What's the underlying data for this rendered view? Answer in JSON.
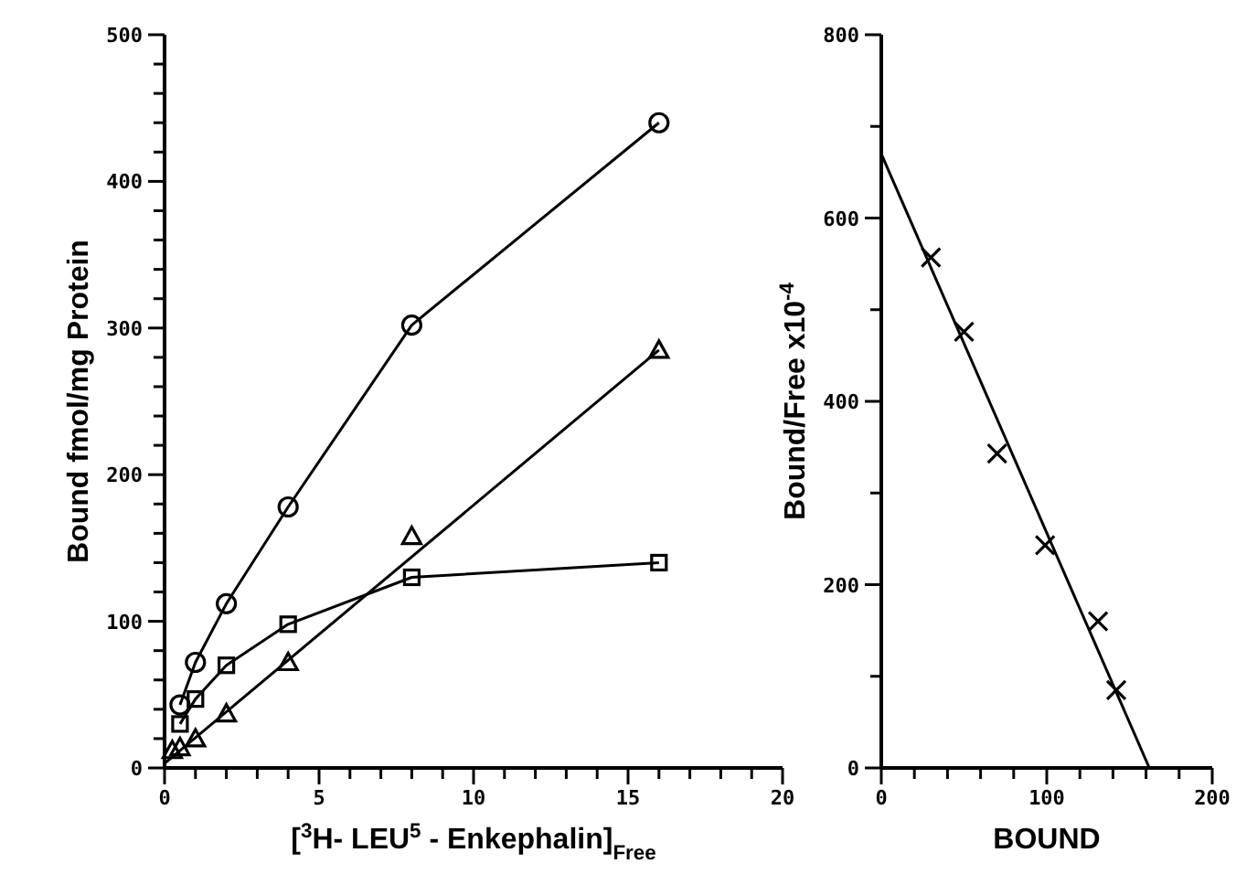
{
  "chart_data": [
    {
      "type": "line",
      "xlabel": "[$^{3}$H- LEU$^{5}$ - Enkephalin]$_{Free}$",
      "ylabel": "Bound fmol/mg Protein",
      "xlim": [
        0,
        20
      ],
      "ylim": [
        0,
        500
      ],
      "xticks": [
        0,
        {
          "value": 1,
          "label": null
        },
        {
          "value": 2,
          "label": null
        },
        {
          "value": 3,
          "label": null
        },
        {
          "value": 4,
          "label": null
        },
        5,
        {
          "value": 6,
          "label": null
        },
        {
          "value": 7,
          "label": null
        },
        {
          "value": 8,
          "label": null
        },
        {
          "value": 9,
          "label": null
        },
        10,
        {
          "value": 11,
          "label": null
        },
        {
          "value": 12,
          "label": null
        },
        {
          "value": 13,
          "label": null
        },
        {
          "value": 14,
          "label": null
        },
        15,
        {
          "value": 16,
          "label": null
        },
        {
          "value": 17,
          "label": null
        },
        {
          "value": 18,
          "label": null
        },
        {
          "value": 19,
          "label": null
        },
        20
      ],
      "yticks": [
        0,
        {
          "value": 20,
          "label": null
        },
        {
          "value": 40,
          "label": null
        },
        {
          "value": 60,
          "label": null
        },
        {
          "value": 80,
          "label": null
        },
        100,
        {
          "value": 120,
          "label": null
        },
        {
          "value": 140,
          "label": null
        },
        {
          "value": 160,
          "label": null
        },
        {
          "value": 180,
          "label": null
        },
        200,
        {
          "value": 220,
          "label": null
        },
        {
          "value": 240,
          "label": null
        },
        {
          "value": 260,
          "label": null
        },
        {
          "value": 280,
          "label": null
        },
        300,
        {
          "value": 320,
          "label": null
        },
        {
          "value": 340,
          "label": null
        },
        {
          "value": 360,
          "label": null
        },
        {
          "value": 380,
          "label": null
        },
        400,
        {
          "value": 420,
          "label": null
        },
        {
          "value": 440,
          "label": null
        },
        {
          "value": 460,
          "label": null
        },
        {
          "value": 480,
          "label": null
        },
        500
      ],
      "line_style": "solid",
      "series": [
        {
          "marker": "circle",
          "color": "#000000",
          "x": [
            0.5,
            1,
            2,
            4,
            8,
            16
          ],
          "values": [
            43,
            72,
            112,
            178,
            302,
            440
          ]
        },
        {
          "marker": "square",
          "color": "#000000",
          "x": [
            0.5,
            1,
            2,
            4,
            8,
            16
          ],
          "values": [
            30,
            47,
            70,
            98,
            130,
            140
          ]
        },
        {
          "type": "scatter",
          "marker": "triangle",
          "color": "#000000",
          "x": [
            0.25,
            0.5,
            1,
            2,
            4,
            8,
            16
          ],
          "values": [
            12,
            14,
            20,
            37,
            72,
            158,
            285
          ]
        },
        {
          "marker": "none",
          "color": "#000000",
          "x": [
            0,
            16
          ],
          "values": [
            3,
            285
          ]
        }
      ]
    },
    {
      "type": "scatter",
      "xlabel": "BOUND",
      "ylabel": "Bound/Free x10$^{-4}$",
      "xlim": [
        0,
        200
      ],
      "ylim": [
        0,
        800
      ],
      "xticks": [
        0,
        {
          "value": 20,
          "label": null
        },
        {
          "value": 40,
          "label": null
        },
        {
          "value": 60,
          "label": null
        },
        {
          "value": 80,
          "label": null
        },
        100,
        {
          "value": 120,
          "label": null
        },
        {
          "value": 140,
          "label": null
        },
        {
          "value": 160,
          "label": null
        },
        {
          "value": 180,
          "label": null
        },
        200
      ],
      "yticks": [
        0,
        {
          "value": 100,
          "label": null
        },
        200,
        {
          "value": 300,
          "label": null
        },
        400,
        {
          "value": 500,
          "label": null
        },
        600,
        {
          "value": 700,
          "label": null
        },
        800
      ],
      "line_style": "solid",
      "series": [
        {
          "marker": "cross",
          "color": "#000000",
          "x": [
            30,
            50,
            70,
            99,
            131,
            142
          ],
          "values": [
            557,
            476,
            343,
            243,
            160,
            85
          ]
        },
        {
          "type": "line",
          "marker": "none",
          "color": "#000000",
          "x": [
            0,
            162
          ],
          "values": [
            670,
            0
          ]
        }
      ]
    }
  ]
}
